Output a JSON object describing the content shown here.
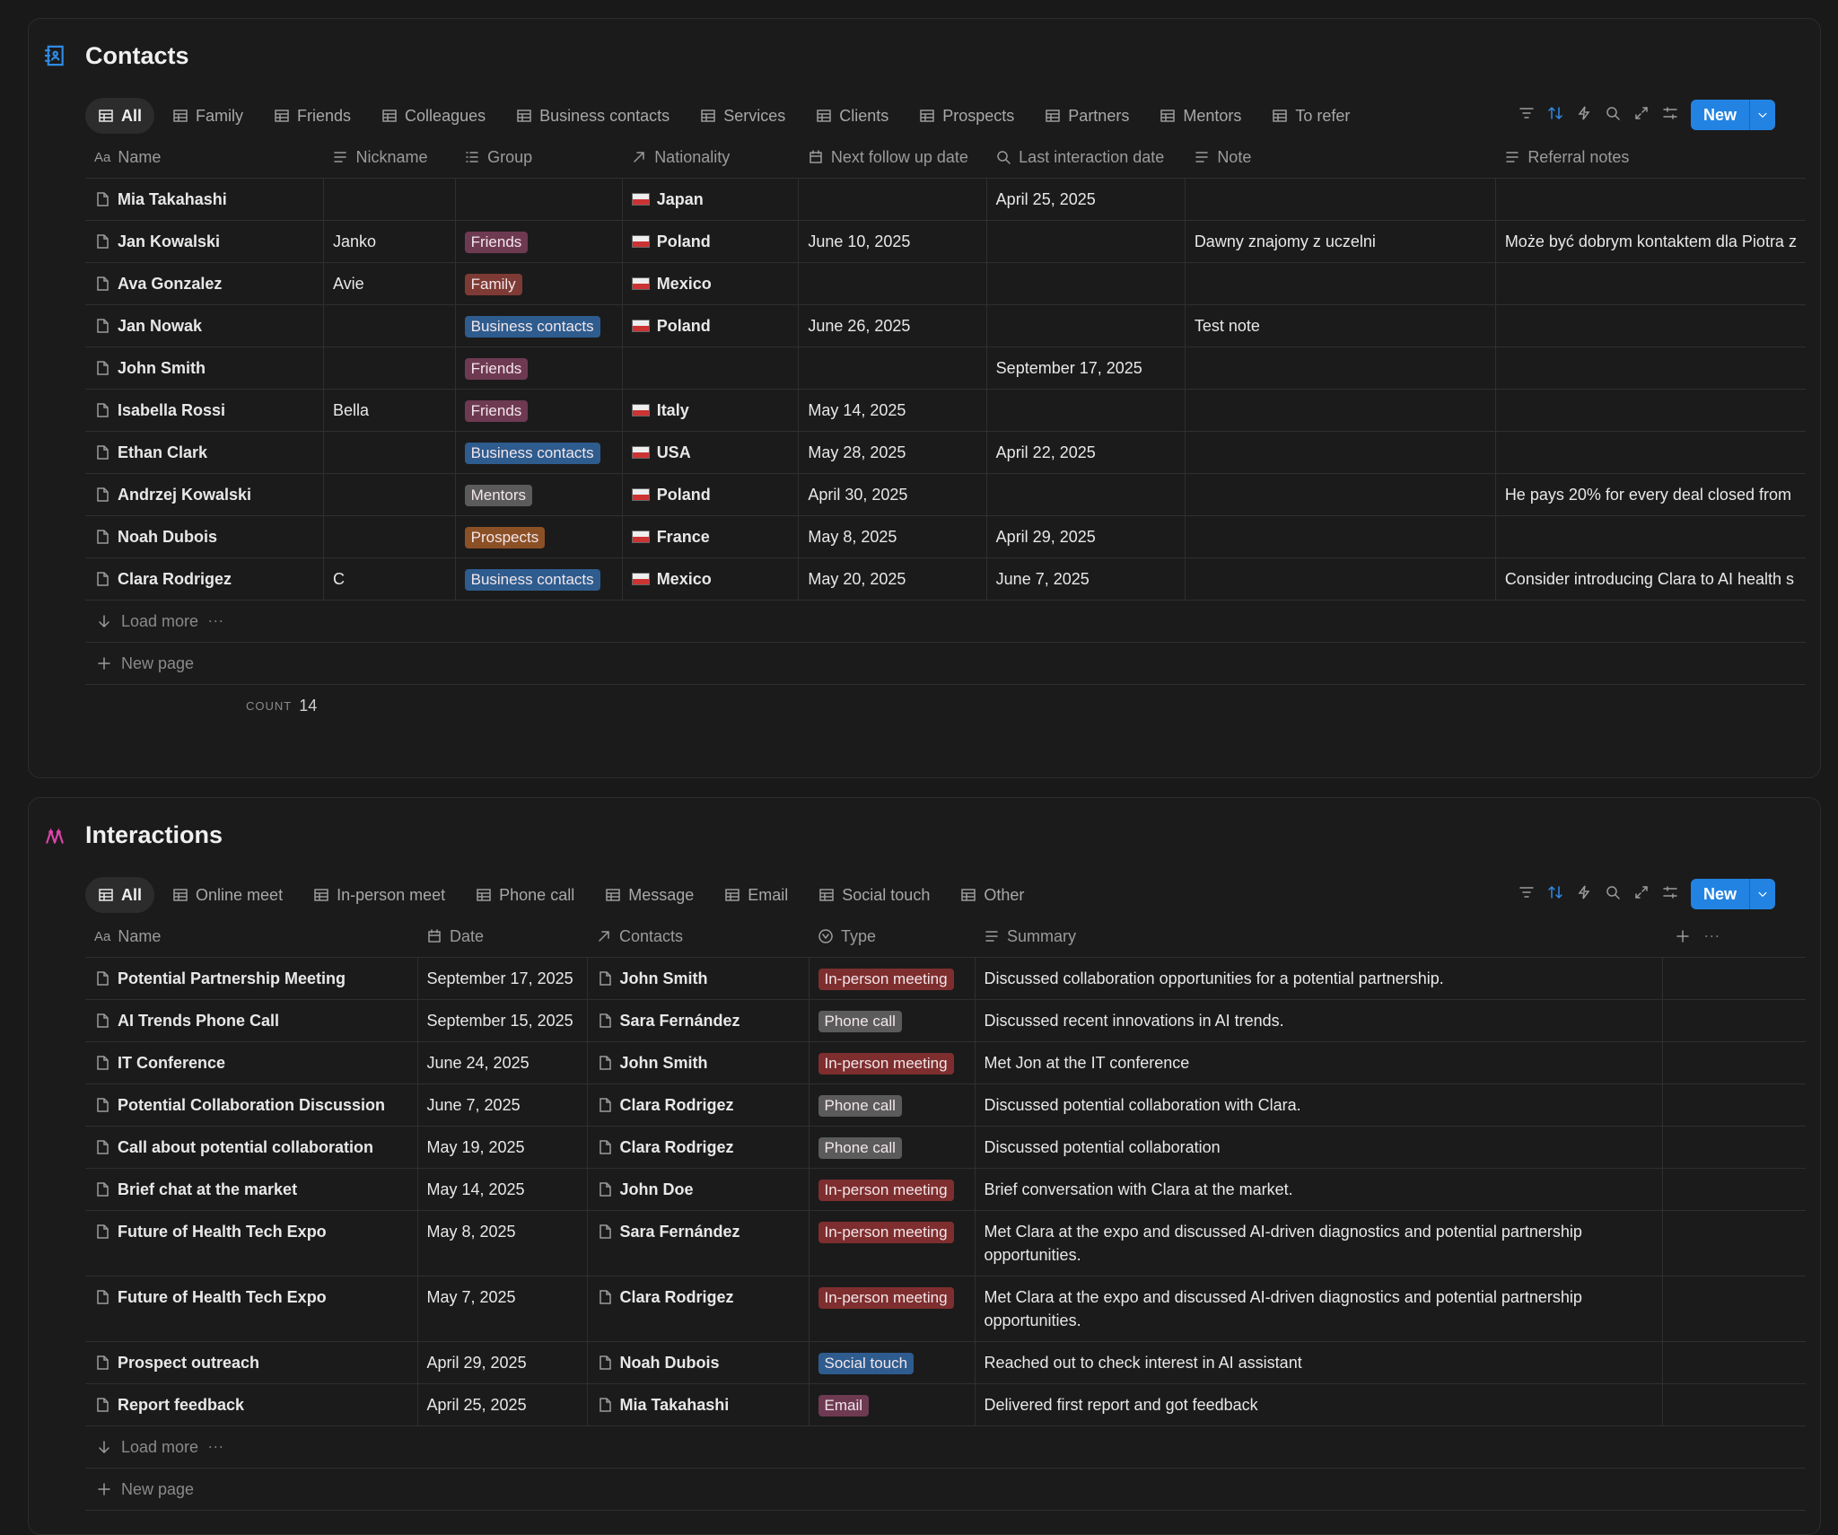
{
  "contacts": {
    "title": "Contacts",
    "name_icon": "Aa",
    "new_button": "New",
    "tabs": [
      "All",
      "Family",
      "Friends",
      "Colleagues",
      "Business contacts",
      "Services",
      "Clients",
      "Prospects",
      "Partners",
      "Mentors",
      "To refer"
    ],
    "columns": [
      "Name",
      "Nickname",
      "Group",
      "Nationality",
      "Next follow up date",
      "Last interaction date",
      "Note",
      "Referral notes"
    ],
    "rows": [
      [
        "Mia Takahashi",
        null,
        null,
        "Japan",
        null,
        "April 25, 2025",
        null,
        null
      ],
      [
        "Jan Kowalski",
        "Janko",
        "Friends",
        "Poland",
        "June 10, 2025",
        null,
        "Dawny znajomy z uczelni",
        "Może być dobrym kontaktem dla Piotra z"
      ],
      [
        "Ava Gonzalez",
        "Avie",
        "Family",
        "Mexico",
        null,
        null,
        null,
        null
      ],
      [
        "Jan Nowak",
        null,
        "Business contacts",
        "Poland",
        "June 26, 2025",
        null,
        "Test note",
        null
      ],
      [
        "John Smith",
        null,
        "Friends",
        null,
        null,
        "September 17, 2025",
        null,
        null
      ],
      [
        "Isabella Rossi",
        "Bella",
        "Friends",
        "Italy",
        "May 14, 2025",
        null,
        null,
        null
      ],
      [
        "Ethan Clark",
        null,
        "Business contacts",
        "USA",
        "May 28, 2025",
        "April 22, 2025",
        null,
        null
      ],
      [
        "Andrzej Kowalski",
        null,
        "Mentors",
        "Poland",
        "April 30, 2025",
        null,
        null,
        "He pays 20% for every deal closed from"
      ],
      [
        "Noah Dubois",
        null,
        "Prospects",
        "France",
        "May 8, 2025",
        "April 29, 2025",
        null,
        null
      ],
      [
        "Clara Rodrigez",
        "C",
        "Business contacts",
        "Mexico",
        "May 20, 2025",
        "June 7, 2025",
        null,
        "Consider introducing Clara to AI health s"
      ]
    ],
    "load_more": "Load more",
    "new_page": "New page",
    "count_label": "COUNT",
    "count": 14,
    "tag_colors": {
      "Friends": "#6e3a52",
      "Family": "#7e3a34",
      "Business contacts": "#2e5c8e",
      "Mentors": "#5b5b5b",
      "Prospects": "#8c5026"
    }
  },
  "interactions": {
    "title": "Interactions",
    "name_icon": "Aa",
    "new_button": "New",
    "tabs": [
      "All",
      "Online meet",
      "In-person meet",
      "Phone call",
      "Message",
      "Email",
      "Social touch",
      "Other"
    ],
    "columns": [
      "Name",
      "Date",
      "Contacts",
      "Type",
      "Summary"
    ],
    "rows": [
      [
        "Potential Partnership Meeting",
        "September 17, 2025",
        "John Smith",
        "In-person meeting",
        "Discussed collaboration opportunities for a potential partnership."
      ],
      [
        "AI Trends Phone Call",
        "September 15, 2025",
        "Sara Fernández",
        "Phone call",
        "Discussed recent innovations in AI trends."
      ],
      [
        "IT Conference",
        "June 24, 2025",
        "John Smith",
        "In-person meeting",
        "Met Jon at the IT conference"
      ],
      [
        "Potential Collaboration Discussion",
        "June 7, 2025",
        "Clara Rodrigez",
        "Phone call",
        "Discussed potential collaboration with Clara."
      ],
      [
        "Call about potential collaboration",
        "May 19, 2025",
        "Clara Rodrigez",
        "Phone call",
        "Discussed potential collaboration"
      ],
      [
        "Brief chat at the market",
        "May 14, 2025",
        "John Doe",
        "In-person meeting",
        "Brief conversation with Clara at the market."
      ],
      [
        "Future of Health Tech Expo",
        "May 8, 2025",
        "Sara Fernández",
        "In-person meeting",
        "Met Clara at the expo and discussed AI-driven diagnostics and potential partnership opportunities."
      ],
      [
        "Future of Health Tech Expo",
        "May 7, 2025",
        "Clara Rodrigez",
        "In-person meeting",
        "Met Clara at the expo and discussed AI-driven diagnostics and potential partnership opportunities."
      ],
      [
        "Prospect outreach",
        "April 29, 2025",
        "Noah Dubois",
        "Social touch",
        "Reached out to check interest in AI assistant"
      ],
      [
        "Report feedback",
        "April 25, 2025",
        "Mia Takahashi",
        "Email",
        "Delivered first report and got feedback"
      ]
    ],
    "load_more": "Load more",
    "new_page": "New page",
    "tag_colors": {
      "In-person meeting": "#7e2e2e",
      "Phone call": "#5b5b5b",
      "Social touch": "#2e5c8e",
      "Email": "#6e3a52"
    }
  }
}
